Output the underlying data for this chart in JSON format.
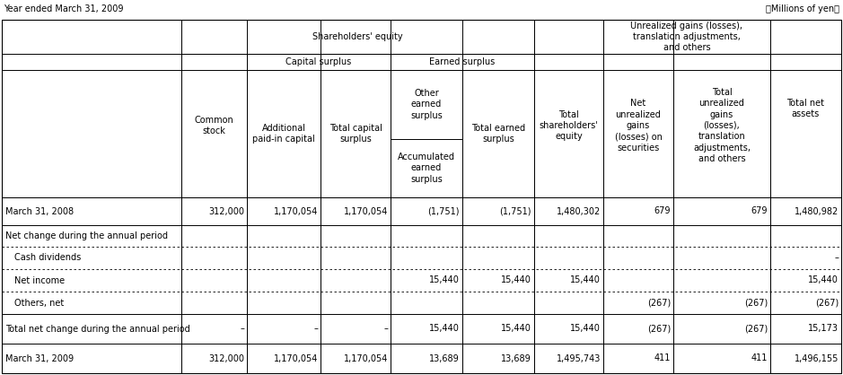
{
  "title_left": "Year ended March 31, 2009",
  "title_right": "（Millions of yen）",
  "rows": [
    [
      "March 31, 2008",
      "312,000",
      "1,170,054",
      "1,170,054",
      "(1,751)",
      "(1,751)",
      "1,480,302",
      "679",
      "679",
      "1,480,982"
    ],
    [
      "Net change during the annual period",
      "",
      "",
      "",
      "",
      "",
      "",
      "",
      "",
      ""
    ],
    [
      "  Cash dividends",
      "",
      "",
      "",
      "",
      "",
      "",
      "",
      "",
      "–"
    ],
    [
      "  Net income",
      "",
      "",
      "",
      "15,440",
      "15,440",
      "15,440",
      "",
      "",
      "15,440"
    ],
    [
      "  Others, net",
      "",
      "",
      "",
      "",
      "",
      "",
      "(267)",
      "(267)",
      "(267)"
    ],
    [
      "Total net change during the annual period",
      "–",
      "–",
      "–",
      "15,440",
      "15,440",
      "15,440",
      "(267)",
      "(267)",
      "15,173"
    ],
    [
      "March 31, 2009",
      "312,000",
      "1,170,054",
      "1,170,054",
      "13,689",
      "13,689",
      "1,495,743",
      "411",
      "411",
      "1,496,155"
    ]
  ],
  "solid_rows": [
    0,
    1,
    5,
    6
  ],
  "dashed_rows": [
    2,
    3,
    4
  ],
  "background_color": "#ffffff",
  "border_color": "#000000",
  "text_color": "#000000",
  "font_size": 7.0
}
